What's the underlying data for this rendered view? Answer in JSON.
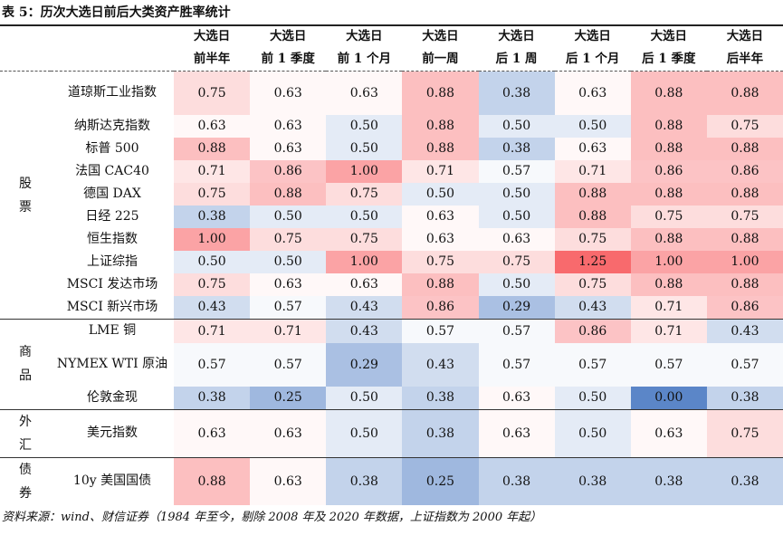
{
  "title": "表 5：历次大选日前后大类资产胜率统计",
  "columns": [
    [
      "大选日",
      "前半年"
    ],
    [
      "大选日",
      "前 1 季度"
    ],
    [
      "大选日",
      "前 1 个月"
    ],
    [
      "大选日",
      "前一周"
    ],
    [
      "大选日",
      "后 1 周"
    ],
    [
      "大选日",
      "后 1 个月"
    ],
    [
      "大选日",
      "后 1 季度"
    ],
    [
      "大选日",
      "后半年"
    ]
  ],
  "groups": [
    {
      "label": "股票",
      "rows": [
        {
          "name": "道琼斯工业指数",
          "values": [
            0.75,
            0.63,
            0.63,
            0.88,
            0.38,
            0.63,
            0.88,
            0.88
          ]
        },
        {
          "name": "纳斯达克指数",
          "values": [
            0.63,
            0.63,
            0.5,
            0.88,
            0.5,
            0.5,
            0.88,
            0.75
          ]
        },
        {
          "name": "标普 500",
          "values": [
            0.88,
            0.63,
            0.5,
            0.88,
            0.38,
            0.63,
            0.88,
            0.88
          ]
        },
        {
          "name": "法国 CAC40",
          "values": [
            0.71,
            0.86,
            1.0,
            0.71,
            0.57,
            0.71,
            0.86,
            0.86
          ]
        },
        {
          "name": "德国 DAX",
          "values": [
            0.75,
            0.88,
            0.75,
            0.5,
            0.5,
            0.88,
            0.88,
            0.88
          ]
        },
        {
          "name": "日经 225",
          "values": [
            0.38,
            0.5,
            0.5,
            0.63,
            0.5,
            0.88,
            0.75,
            0.75
          ]
        },
        {
          "name": "恒生指数",
          "values": [
            1.0,
            0.75,
            0.75,
            0.63,
            0.63,
            0.75,
            0.88,
            0.88
          ]
        },
        {
          "name": "上证综指",
          "values": [
            0.5,
            0.5,
            1.0,
            0.75,
            0.75,
            1.25,
            1.0,
            1.0
          ]
        },
        {
          "name": "MSCI 发达市场",
          "values": [
            0.75,
            0.63,
            0.63,
            0.88,
            0.5,
            0.75,
            0.88,
            0.88
          ]
        },
        {
          "name": "MSCI 新兴市场",
          "values": [
            0.43,
            0.57,
            0.43,
            0.86,
            0.29,
            0.43,
            0.71,
            0.86
          ]
        }
      ]
    },
    {
      "label": "商品",
      "rows": [
        {
          "name": "LME 铜",
          "values": [
            0.71,
            0.71,
            0.43,
            0.57,
            0.57,
            0.86,
            0.71,
            0.43
          ]
        },
        {
          "name": "NYMEX WTI 原油",
          "values": [
            0.57,
            0.57,
            0.29,
            0.43,
            0.57,
            0.57,
            0.57,
            0.57
          ]
        },
        {
          "name": "伦敦金现",
          "values": [
            0.38,
            0.25,
            0.5,
            0.38,
            0.63,
            0.5,
            0.0,
            0.38
          ]
        }
      ]
    },
    {
      "label": "外汇",
      "rows": [
        {
          "name": "美元指数",
          "values": [
            0.63,
            0.63,
            0.5,
            0.38,
            0.63,
            0.5,
            0.63,
            0.75
          ]
        }
      ]
    },
    {
      "label": "债券",
      "rows": [
        {
          "name": "10y 美国国债",
          "values": [
            0.88,
            0.63,
            0.38,
            0.25,
            0.38,
            0.38,
            0.38,
            0.38
          ]
        }
      ]
    }
  ],
  "colors": {
    "high": "#f86a6d",
    "mid": "#ffffff",
    "low": "#5b86c8"
  },
  "source": "资料来源：wind、财信证券（1984 年至今，剔除 2008 年及 2020 年数据，上证指数为 2000 年起）"
}
